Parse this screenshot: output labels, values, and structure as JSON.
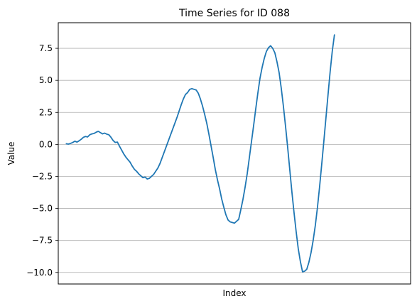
{
  "chart_data": {
    "type": "line",
    "title": "Time Series for ID 088",
    "xlabel": "Index",
    "ylabel": "Value",
    "x_ticks_shown": false,
    "xlim": [
      -3.8,
      161.8
    ],
    "ylim": [
      -10.9,
      9.5
    ],
    "yticks": [
      -10.0,
      -7.5,
      -5.0,
      -2.5,
      0.0,
      2.5,
      5.0,
      7.5
    ],
    "ytick_labels": [
      "−10.0",
      "−7.5",
      "−5.0",
      "−2.5",
      "0.0",
      "2.5",
      "5.0",
      "7.5"
    ],
    "grid": {
      "axis": "y",
      "enabled": true
    },
    "legend": "none",
    "line_color": "#1f77b4",
    "series": [
      {
        "values": [
          0.05,
          0.02,
          0.08,
          0.15,
          0.25,
          0.18,
          0.28,
          0.4,
          0.55,
          0.62,
          0.58,
          0.75,
          0.82,
          0.85,
          0.95,
          1.02,
          0.92,
          0.82,
          0.88,
          0.8,
          0.75,
          0.55,
          0.3,
          0.15,
          0.18,
          -0.15,
          -0.45,
          -0.75,
          -1.0,
          -1.2,
          -1.4,
          -1.7,
          -1.95,
          -2.1,
          -2.3,
          -2.45,
          -2.6,
          -2.55,
          -2.7,
          -2.65,
          -2.5,
          -2.35,
          -2.1,
          -1.85,
          -1.5,
          -1.05,
          -0.6,
          -0.15,
          0.3,
          0.75,
          1.2,
          1.65,
          2.1,
          2.6,
          3.1,
          3.55,
          3.9,
          4.05,
          4.3,
          4.35,
          4.3,
          4.25,
          4.0,
          3.55,
          3.0,
          2.35,
          1.65,
          0.8,
          -0.1,
          -1.0,
          -1.95,
          -2.75,
          -3.45,
          -4.25,
          -4.9,
          -5.5,
          -5.9,
          -6.05,
          -6.1,
          -6.15,
          -6.0,
          -5.85,
          -5.1,
          -4.3,
          -3.35,
          -2.3,
          -1.05,
          0.2,
          1.45,
          2.75,
          4.0,
          5.15,
          6.0,
          6.7,
          7.25,
          7.55,
          7.7,
          7.5,
          7.15,
          6.45,
          5.6,
          4.4,
          3.0,
          1.45,
          -0.2,
          -1.95,
          -3.7,
          -5.3,
          -6.8,
          -8.15,
          -9.15,
          -9.95,
          -9.9,
          -9.75,
          -9.2,
          -8.45,
          -7.5,
          -6.35,
          -4.95,
          -3.35,
          -1.6,
          0.2,
          2.05,
          3.9,
          5.7,
          7.3,
          8.55
        ]
      }
    ]
  }
}
